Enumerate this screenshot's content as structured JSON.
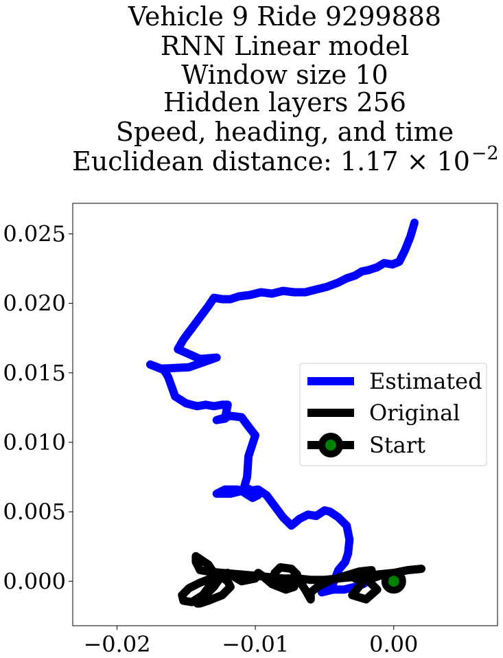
{
  "chart_data": {
    "type": "line",
    "title_lines": [
      "Vehicle 9 Ride 9299888",
      "RNN Linear model",
      "Window size 10",
      "Hidden layers 256",
      "Speed, heading, and time",
      "Euclidean distance: 1.17 × 10"
    ],
    "title_exponent": "−2",
    "xlabel": "",
    "ylabel": "",
    "xlim": [
      -0.0232,
      0.0075
    ],
    "ylim": [
      -0.0032,
      0.0272
    ],
    "x_ticks": [
      -0.02,
      -0.01,
      0.0
    ],
    "x_tick_labels": [
      "−0.02",
      "−0.01",
      "0.00"
    ],
    "y_ticks": [
      0.0,
      0.005,
      0.01,
      0.015,
      0.02,
      0.025
    ],
    "y_tick_labels": [
      "0.000",
      "0.005",
      "0.010",
      "0.015",
      "0.020",
      "0.025"
    ],
    "grid": false,
    "legend_position": "center-right",
    "series": [
      {
        "name": "Estimated",
        "color": "#0000ff",
        "x": [
          0.0015,
          0.0012,
          0.0008,
          0.0004,
          -0.0001,
          -0.0007,
          -0.0012,
          -0.0018,
          -0.0023,
          -0.0028,
          -0.0034,
          -0.004,
          -0.0048,
          -0.0056,
          -0.0064,
          -0.0072,
          -0.008,
          -0.0088,
          -0.0096,
          -0.0104,
          -0.0112,
          -0.0118,
          -0.0124,
          -0.013,
          -0.0134,
          -0.014,
          -0.0146,
          -0.0152,
          -0.0156,
          -0.014,
          -0.0128,
          -0.0148,
          -0.0168,
          -0.0176,
          -0.0166,
          -0.0163,
          -0.0158,
          -0.015,
          -0.0142,
          -0.0136,
          -0.013,
          -0.0124,
          -0.012,
          -0.0122,
          -0.0128,
          -0.0118,
          -0.011,
          -0.0104,
          -0.01,
          -0.0105,
          -0.0106,
          -0.0108,
          -0.0104,
          -0.0098,
          -0.0102,
          -0.011,
          -0.0118,
          -0.0128,
          -0.0122,
          -0.0114,
          -0.0106,
          -0.0098,
          -0.0092,
          -0.0086,
          -0.008,
          -0.0074,
          -0.0068,
          -0.0062,
          -0.0056,
          -0.005,
          -0.0046,
          -0.004,
          -0.0034,
          -0.0032,
          -0.0033,
          -0.0035,
          -0.004,
          -0.0044,
          -0.0048,
          -0.0052,
          -0.0044,
          -0.0036,
          -0.0028,
          -0.0022,
          -0.0018
        ],
        "y": [
          0.0258,
          0.0248,
          0.0238,
          0.023,
          0.0228,
          0.0229,
          0.0226,
          0.0224,
          0.0223,
          0.022,
          0.0218,
          0.0215,
          0.0212,
          0.021,
          0.0208,
          0.0208,
          0.0209,
          0.0207,
          0.0208,
          0.0206,
          0.0205,
          0.0203,
          0.0203,
          0.0204,
          0.0198,
          0.019,
          0.0182,
          0.0174,
          0.0167,
          0.016,
          0.0161,
          0.0154,
          0.0153,
          0.0156,
          0.0152,
          0.0147,
          0.0133,
          0.0128,
          0.0126,
          0.0127,
          0.0126,
          0.0127,
          0.0127,
          0.0117,
          0.0116,
          0.0119,
          0.0118,
          0.011,
          0.0105,
          0.009,
          0.0075,
          0.0068,
          0.0066,
          0.0062,
          0.006,
          0.0065,
          0.0063,
          0.0063,
          0.0066,
          0.0066,
          0.0065,
          0.0066,
          0.0062,
          0.0054,
          0.0046,
          0.004,
          0.0045,
          0.0048,
          0.0047,
          0.0051,
          0.005,
          0.0046,
          0.004,
          0.003,
          0.002,
          0.0014,
          0.0008,
          -0.0002,
          -0.0006,
          -0.0008,
          -0.0006,
          -0.0006,
          -0.0004,
          -0.0002,
          0.0001
        ]
      },
      {
        "name": "Original",
        "color": "#000000",
        "x": [
          0.002,
          0.001,
          0.0,
          -0.001,
          -0.0022,
          -0.003,
          -0.002,
          -0.0012,
          -0.0018,
          -0.0028,
          -0.0026,
          -0.0016,
          -0.0025,
          -0.0035,
          -0.0045,
          -0.0055,
          -0.006,
          -0.006,
          -0.0064,
          -0.0068,
          -0.007,
          -0.0074,
          -0.0082,
          -0.0086,
          -0.0084,
          -0.0076,
          -0.0072,
          -0.0078,
          -0.0088,
          -0.0095,
          -0.0098,
          -0.01,
          -0.011,
          -0.012,
          -0.0125,
          -0.013,
          -0.0138,
          -0.0142,
          -0.014,
          -0.0134,
          -0.0124,
          -0.0118,
          -0.012,
          -0.0124,
          -0.0132,
          -0.014,
          -0.0148,
          -0.0153,
          -0.0152,
          -0.0146,
          -0.0138,
          -0.0132,
          -0.013,
          -0.0134,
          -0.014,
          -0.0143,
          -0.0143,
          -0.014,
          -0.0134,
          -0.0124,
          -0.0112,
          -0.01,
          -0.009,
          -0.008,
          -0.007,
          -0.006,
          -0.005,
          -0.004,
          -0.003,
          -0.002,
          -0.001,
          0.0,
          0.001,
          0.002
        ],
        "y": [
          0.0009,
          0.0008,
          0.0006,
          0.0004,
          0.0,
          -0.001,
          -0.0013,
          -0.0006,
          0.0,
          0.0002,
          0.0006,
          0.0008,
          0.0007,
          0.0004,
          0.0001,
          -0.0004,
          -0.0008,
          -0.0013,
          -0.0006,
          0.0,
          0.0005,
          0.0009,
          0.001,
          0.0006,
          0.0001,
          0.0,
          -0.0004,
          -0.0006,
          -0.0002,
          0.0004,
          0.0006,
          0.0002,
          0.0,
          0.0006,
          0.0003,
          -0.0004,
          -0.0012,
          -0.0016,
          -0.0016,
          -0.0014,
          -0.001,
          -0.0004,
          0.0,
          0.0003,
          0.0002,
          -0.0001,
          -0.0005,
          -0.001,
          -0.0014,
          -0.0015,
          -0.001,
          -0.0002,
          0.0006,
          0.0012,
          0.0016,
          0.0018,
          0.0014,
          0.0008,
          0.0007,
          0.0006,
          0.0005,
          0.0004,
          0.0003,
          0.0002,
          0.0002,
          0.0001,
          0.0001,
          0.0002,
          0.0003,
          0.0004,
          0.0005,
          0.0006,
          0.0008,
          0.0009
        ]
      },
      {
        "name": "Start",
        "color": "#000000",
        "marker_face": "#008000",
        "x": [
          0.0
        ],
        "y": [
          0.0
        ]
      }
    ]
  }
}
